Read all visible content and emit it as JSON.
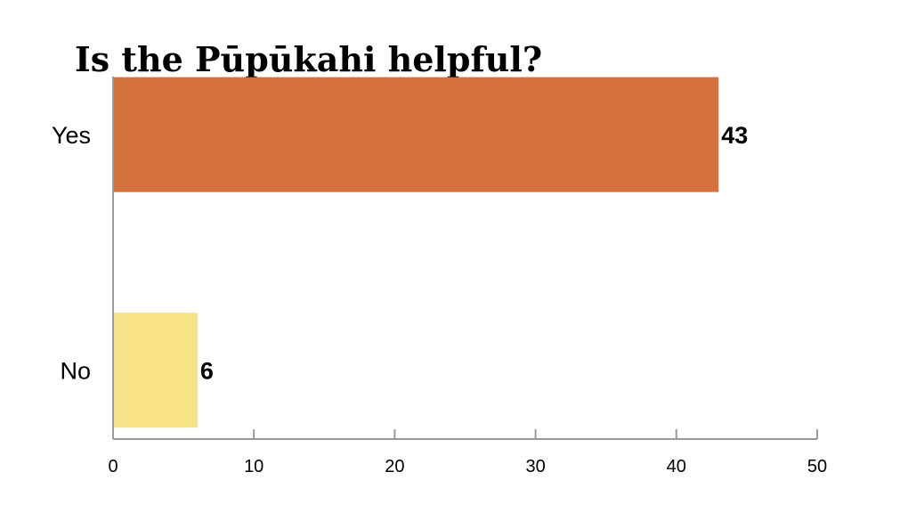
{
  "chart_data": {
    "type": "bar",
    "orientation": "horizontal",
    "title": "Is the Pūpūkahi helpful?",
    "categories": [
      "Yes",
      "No"
    ],
    "values": [
      43,
      6
    ],
    "colors": [
      "#d4713c",
      "#f7e287"
    ],
    "xlim": [
      0,
      50
    ],
    "xticks": [
      0,
      10,
      20,
      30,
      40,
      50
    ],
    "xlabel": "",
    "ylabel": "",
    "grid": false,
    "legend": "none",
    "data_labels": true
  }
}
